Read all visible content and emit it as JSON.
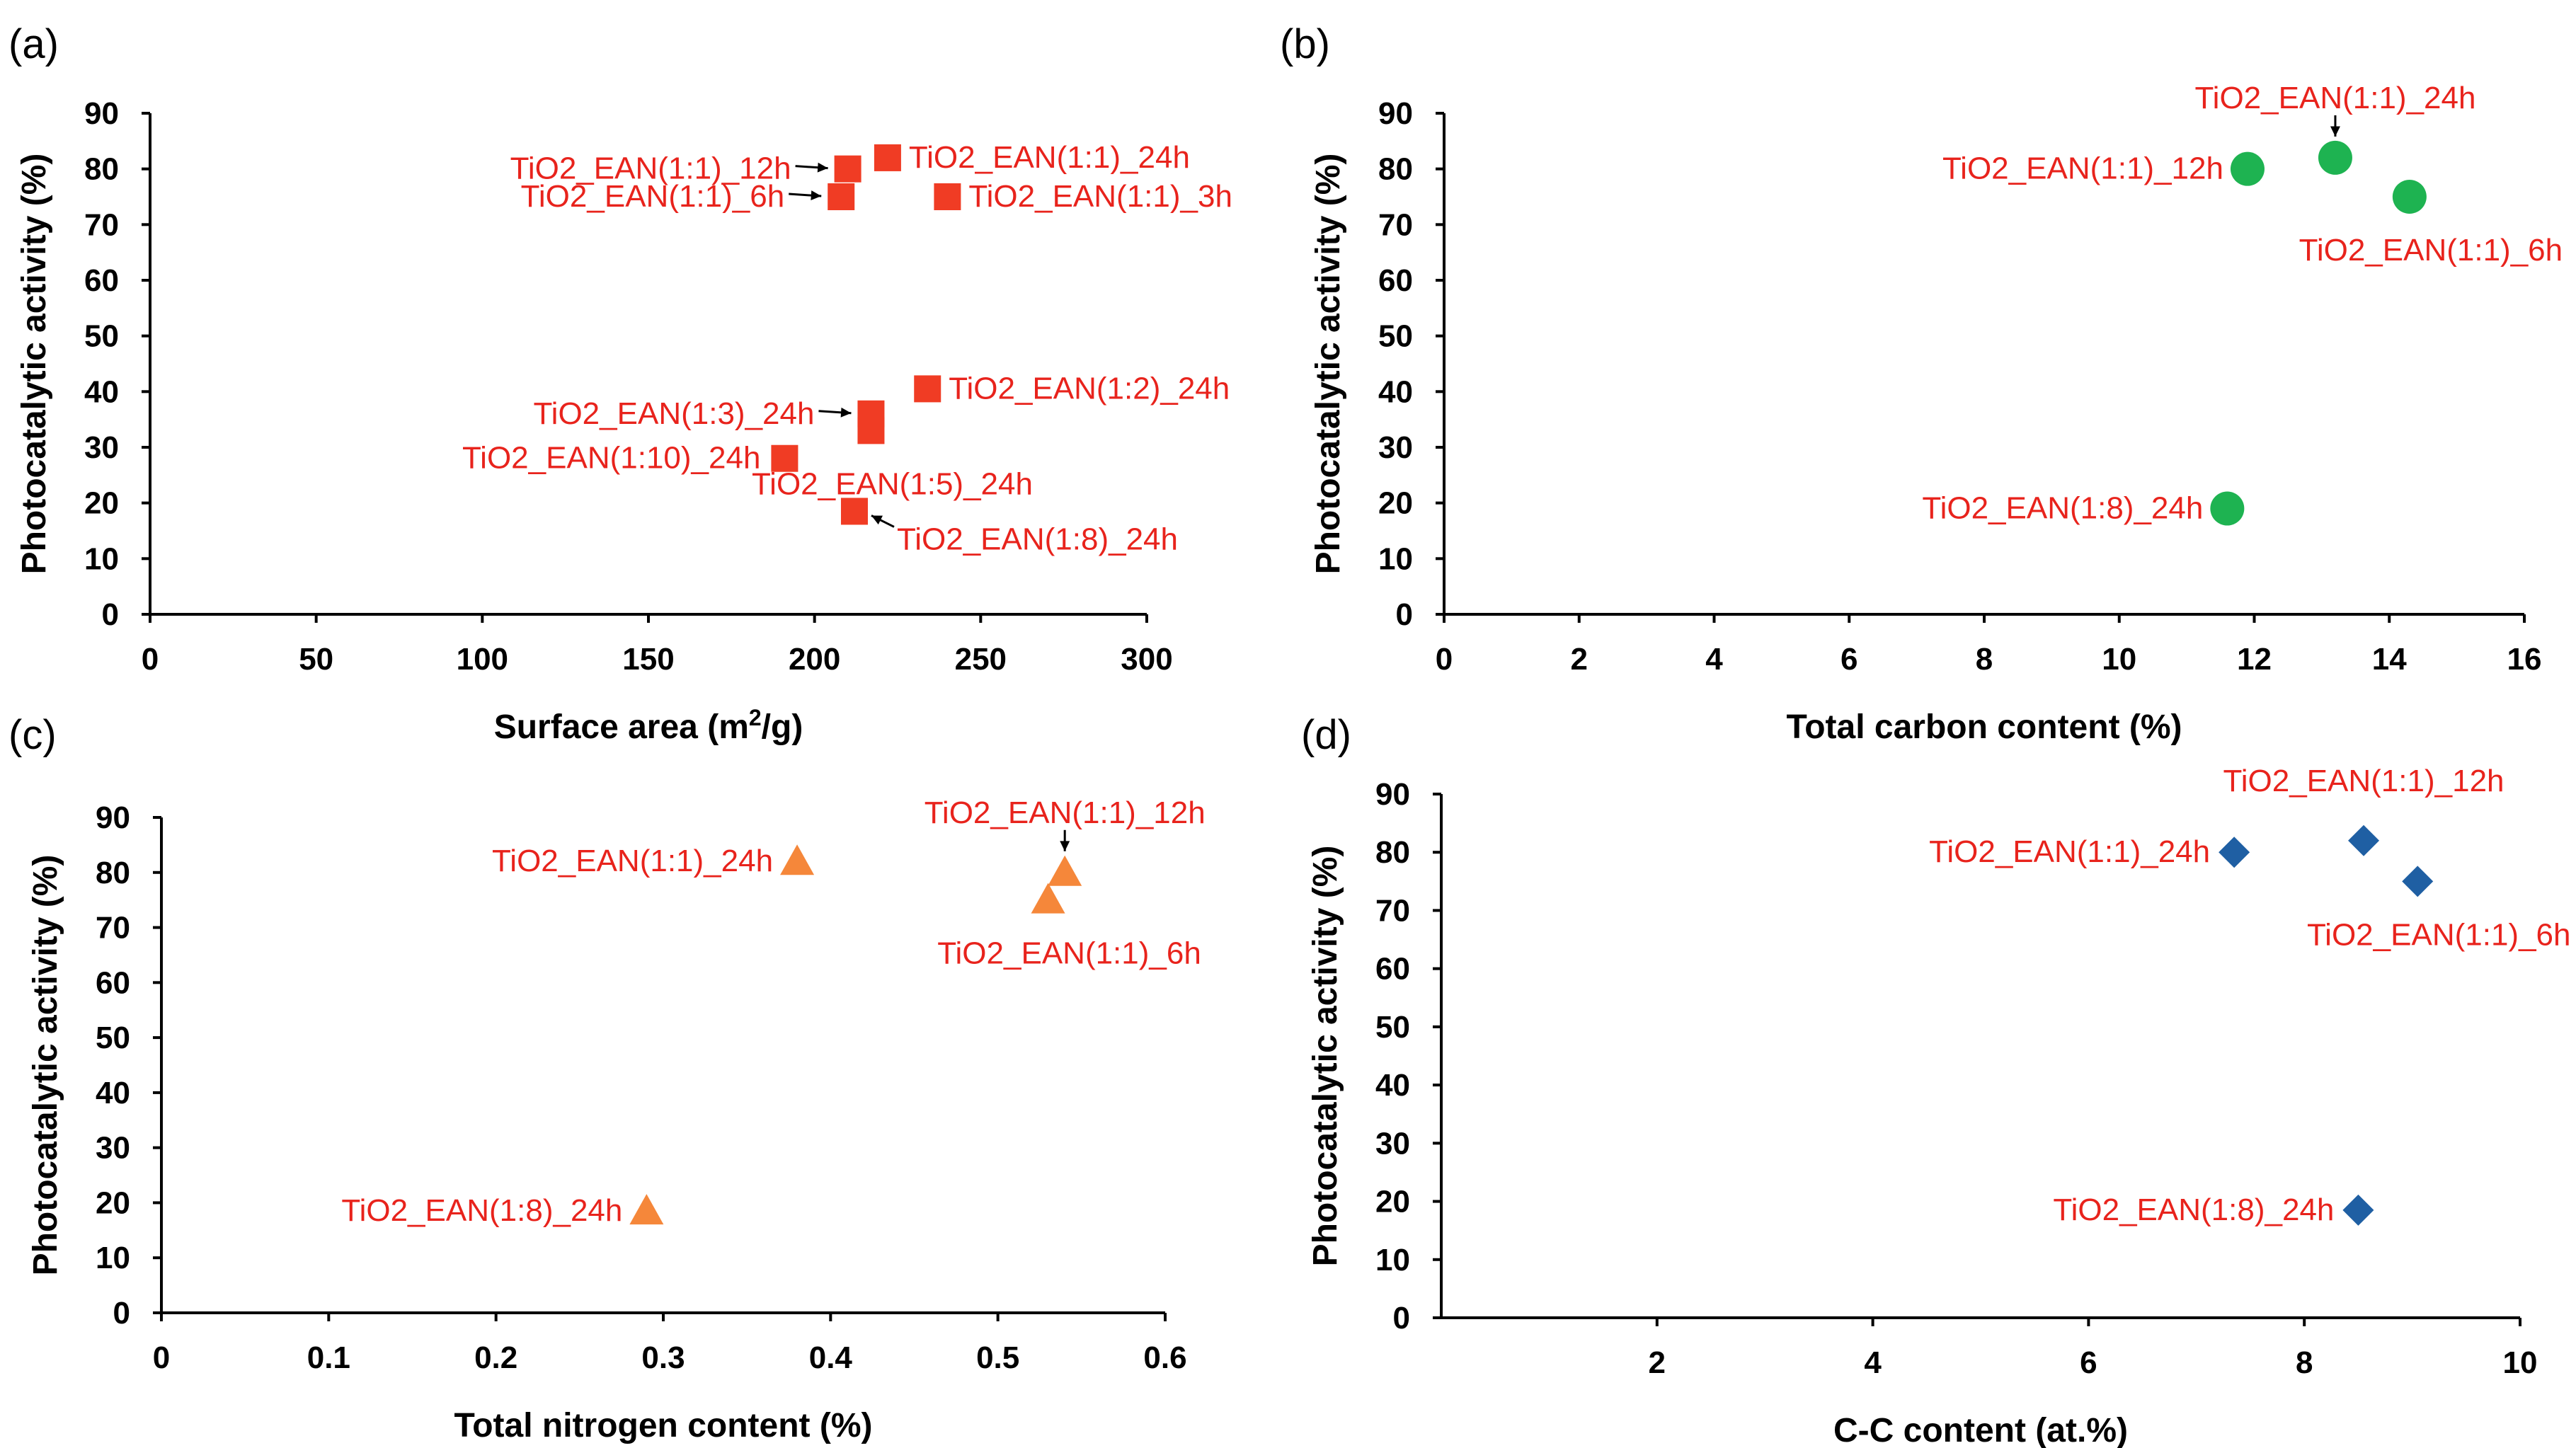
{
  "chart_data": [
    {
      "panel": "(a)",
      "type": "scatter",
      "xlabel": "Surface area (m",
      "xlabel_sup": "2",
      "xlabel_tail": "/g)",
      "ylabel": "Photocatalytic activity (%)",
      "xlim": [
        0,
        300
      ],
      "ylim": [
        0,
        90
      ],
      "xticks": [
        0,
        50,
        100,
        150,
        200,
        250,
        300
      ],
      "yticks": [
        0,
        10,
        20,
        30,
        40,
        50,
        60,
        70,
        80,
        90
      ],
      "xtick_labels": [
        "0",
        "50",
        "100",
        "150",
        "200",
        "250",
        "300"
      ],
      "ytick_labels": [
        "0",
        "10",
        "20",
        "30",
        "40",
        "50",
        "60",
        "70",
        "80",
        "90"
      ],
      "marker": "square",
      "color": "#f03c24",
      "points": [
        {
          "label": "TiO2_EAN(1:1)_24h",
          "x": 222,
          "y": 82,
          "side": "right"
        },
        {
          "label": "TiO2_EAN(1:1)_12h",
          "x": 210,
          "y": 80,
          "side": "left",
          "arrow": true
        },
        {
          "label": "TiO2_EAN(1:1)_6h",
          "x": 208,
          "y": 75,
          "side": "left",
          "arrow": true
        },
        {
          "label": "TiO2_EAN(1:1)_3h",
          "x": 240,
          "y": 75,
          "side": "right"
        },
        {
          "label": "TiO2_EAN(1:2)_24h",
          "x": 234,
          "y": 40.5,
          "side": "right"
        },
        {
          "label": "TiO2_EAN(1:3)_24h",
          "x": 217,
          "y": 36,
          "side": "left",
          "arrow": true
        },
        {
          "label": "TiO2_EAN(1:5)_24h",
          "x": 217,
          "y": 33,
          "side": "below"
        },
        {
          "label": "TiO2_EAN(1:10)_24h",
          "x": 191,
          "y": 28,
          "side": "left"
        },
        {
          "label": "TiO2_EAN(1:8)_24h",
          "x": 212,
          "y": 18.5,
          "side": "below-right",
          "arrow": true
        }
      ]
    },
    {
      "panel": "(b)",
      "type": "scatter",
      "xlabel": "Total carbon content (%)",
      "ylabel": "Photocatalytic activity (%)",
      "xlim": [
        0,
        16
      ],
      "ylim": [
        0,
        90
      ],
      "xticks": [
        0,
        2,
        4,
        6,
        8,
        10,
        12,
        14,
        16
      ],
      "yticks": [
        0,
        10,
        20,
        30,
        40,
        50,
        60,
        70,
        80,
        90
      ],
      "xtick_labels": [
        "0",
        "2",
        "4",
        "6",
        "8",
        "10",
        "12",
        "14",
        "16"
      ],
      "ytick_labels": [
        "0",
        "10",
        "20",
        "30",
        "40",
        "50",
        "60",
        "70",
        "80",
        "90"
      ],
      "marker": "circle",
      "color": "#1eb351",
      "points": [
        {
          "label": "TiO2_EAN(1:1)_24h",
          "x": 13.2,
          "y": 82,
          "side": "above",
          "arrow": true
        },
        {
          "label": "TiO2_EAN(1:1)_12h",
          "x": 11.9,
          "y": 80,
          "side": "left"
        },
        {
          "label": "TiO2_EAN(1:1)_6h",
          "x": 14.3,
          "y": 75,
          "side": "below"
        },
        {
          "label": "TiO2_EAN(1:8)_24h",
          "x": 11.6,
          "y": 19,
          "side": "left"
        }
      ]
    },
    {
      "panel": "(c)",
      "type": "scatter",
      "xlabel": "Total nitrogen content (%)",
      "ylabel": "Photocatalytic activity (%)",
      "xlim": [
        0,
        0.6
      ],
      "ylim": [
        0,
        90
      ],
      "xticks": [
        0,
        0.1,
        0.2,
        0.3,
        0.4,
        0.5,
        0.6
      ],
      "yticks": [
        0,
        10,
        20,
        30,
        40,
        50,
        60,
        70,
        80,
        90
      ],
      "xtick_labels": [
        "0",
        "0.1",
        "0.2",
        "0.3",
        "0.4",
        "0.5",
        "0.6"
      ],
      "ytick_labels": [
        "0",
        "10",
        "20",
        "30",
        "40",
        "50",
        "60",
        "70",
        "80",
        "90"
      ],
      "marker": "triangle",
      "color": "#f5873a",
      "points": [
        {
          "label": "TiO2_EAN(1:1)_24h",
          "x": 0.38,
          "y": 82,
          "side": "left"
        },
        {
          "label": "TiO2_EAN(1:1)_12h",
          "x": 0.54,
          "y": 80,
          "side": "above",
          "arrow": true
        },
        {
          "label": "TiO2_EAN(1:1)_6h",
          "x": 0.53,
          "y": 75,
          "side": "below"
        },
        {
          "label": "TiO2_EAN(1:8)_24h",
          "x": 0.29,
          "y": 18.5,
          "side": "left"
        }
      ]
    },
    {
      "panel": "(d)",
      "type": "scatter",
      "xlabel": "C-C content (at.%)",
      "ylabel": "Photocatalytic activity (%)",
      "xlim": [
        0,
        10
      ],
      "ylim": [
        0,
        90
      ],
      "xticks": [
        2,
        4,
        6,
        8,
        10
      ],
      "yticks": [
        0,
        10,
        20,
        30,
        40,
        50,
        60,
        70,
        80,
        90
      ],
      "xtick_labels": [
        "2",
        "4",
        "6",
        "8",
        "10"
      ],
      "ytick_labels": [
        "0",
        "10",
        "20",
        "30",
        "40",
        "50",
        "60",
        "70",
        "80",
        "90"
      ],
      "marker": "diamond",
      "color": "#1f5fa3",
      "points": [
        {
          "label": "TiO2_EAN(1:1)_24h",
          "x": 7.35,
          "y": 80,
          "side": "left"
        },
        {
          "label": "TiO2_EAN(1:1)_12h",
          "x": 8.55,
          "y": 82,
          "side": "above"
        },
        {
          "label": "TiO2_EAN(1:1)_6h",
          "x": 9.05,
          "y": 75,
          "side": "below"
        },
        {
          "label": "TiO2_EAN(1:8)_24h",
          "x": 8.5,
          "y": 18.5,
          "side": "left"
        }
      ]
    }
  ]
}
